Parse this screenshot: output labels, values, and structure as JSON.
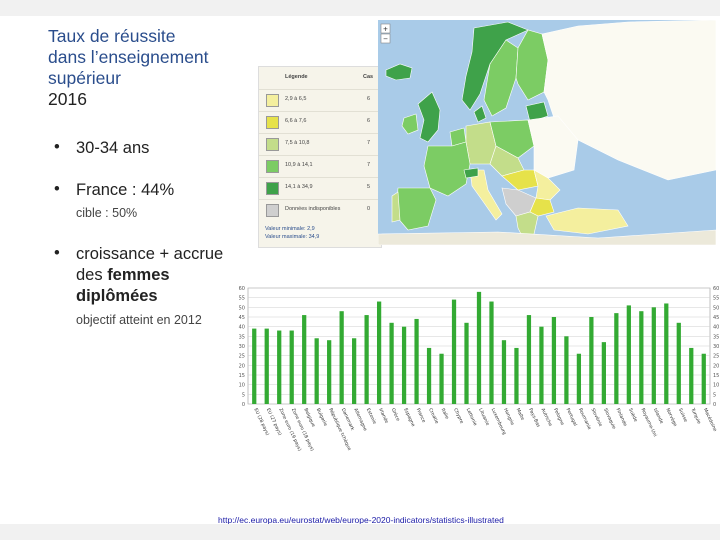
{
  "slide": {
    "title_lines": [
      "Taux de réussite",
      "dans l’enseignement",
      "supérieur"
    ],
    "year": "2016",
    "bullets": [
      {
        "symbol": "•",
        "text": "30-34 ans"
      },
      {
        "symbol": "•",
        "text": "France : 44%",
        "sub": "cible : 50%"
      },
      {
        "symbol": "•",
        "text_plain": "croissance + accrue des ",
        "text_bold": "femmes diplômées",
        "sub": "objectif atteint en 2012"
      }
    ],
    "link": "http://ec.europa.eu/eurostat/web/europe-2020-indicators/statistics-illustrated"
  },
  "legend": {
    "title": "Légende",
    "count_header": "Cas",
    "rows": [
      {
        "range": "2,9 à 6,5",
        "count": "6",
        "color": "#f4ef9e"
      },
      {
        "range": "6,6 à 7,6",
        "count": "6",
        "color": "#e6e24a"
      },
      {
        "range": "7,5 à 10,8",
        "count": "7",
        "color": "#c3dd8a"
      },
      {
        "range": "10,9 à 14,1",
        "count": "7",
        "color": "#7ccc64"
      },
      {
        "range": "14,1 à 34,9",
        "count": "5",
        "color": "#3fa24a"
      },
      {
        "range": "Données indisponibles",
        "count": "0",
        "color": "#cfcfcf"
      }
    ],
    "min_note": "Valeur minimale: 2,9",
    "max_note": "Valeur maximale: 34,9"
  },
  "chart_data": {
    "type": "bar",
    "ylim": [
      0,
      60
    ],
    "yticks": [
      0,
      5,
      10,
      15,
      20,
      25,
      30,
      35,
      40,
      45,
      50,
      55,
      60
    ],
    "bar_color": "#33aa33",
    "categories": [
      "EU (28 pays)",
      "EU (27 pays)",
      "Zone euro (19 pays)",
      "Zone euro (18 pays)",
      "Belgique",
      "Bulgarie",
      "République tchèque",
      "Danemark",
      "Allemagne",
      "Estonie",
      "Irlande",
      "Grèce",
      "Espagne",
      "France",
      "Croatie",
      "Italie",
      "Chypre",
      "Lettonie",
      "Lituanie",
      "Luxembourg",
      "Hongrie",
      "Malte",
      "Pays-Bas",
      "Autriche",
      "Pologne",
      "Portugal",
      "Roumanie",
      "Slovénie",
      "Slovaquie",
      "Finlande",
      "Suède",
      "Royaume-Uni",
      "Islande",
      "Norvège",
      "Suisse",
      "Turquie",
      "Macédoine"
    ],
    "values": [
      39,
      39,
      38,
      38,
      46,
      34,
      33,
      48,
      34,
      46,
      53,
      42,
      40,
      44,
      29,
      26,
      54,
      42,
      58,
      53,
      33,
      29,
      46,
      40,
      45,
      35,
      26,
      45,
      32,
      47,
      51,
      48,
      50,
      52,
      42,
      29,
      26
    ]
  }
}
